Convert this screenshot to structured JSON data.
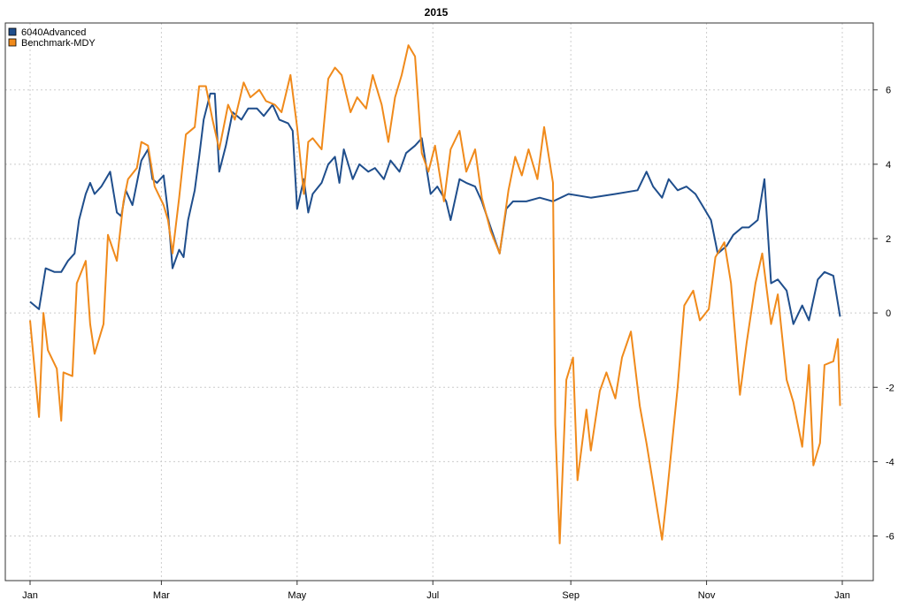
{
  "chart_data": {
    "type": "line",
    "title": "2015",
    "xlabel": "",
    "ylabel": "",
    "y_axis_side": "right",
    "grid": true,
    "legend_position": "top-left",
    "x_range": [
      "2015-01-01",
      "2016-01-01"
    ],
    "ylim": [
      -7.2,
      7.8
    ],
    "x_ticks": [
      {
        "label": "Jan",
        "date": "2015-01-01"
      },
      {
        "label": "Mar",
        "date": "2015-03-01"
      },
      {
        "label": "May",
        "date": "2015-05-01"
      },
      {
        "label": "Jul",
        "date": "2015-07-01"
      },
      {
        "label": "Sep",
        "date": "2015-09-01"
      },
      {
        "label": "Nov",
        "date": "2015-11-01"
      },
      {
        "label": "Jan",
        "date": "2016-01-01"
      }
    ],
    "y_ticks": [
      6,
      4,
      2,
      0,
      -2,
      -4,
      -6
    ],
    "series": [
      {
        "name": "6040Advanced",
        "color": "#1f4e8c",
        "points": [
          [
            "2015-01-01",
            0.3
          ],
          [
            "2015-01-05",
            0.1
          ],
          [
            "2015-01-08",
            1.2
          ],
          [
            "2015-01-12",
            1.1
          ],
          [
            "2015-01-15",
            1.1
          ],
          [
            "2015-01-18",
            1.4
          ],
          [
            "2015-01-21",
            1.6
          ],
          [
            "2015-01-23",
            2.5
          ],
          [
            "2015-01-26",
            3.2
          ],
          [
            "2015-01-28",
            3.5
          ],
          [
            "2015-01-30",
            3.2
          ],
          [
            "2015-02-02",
            3.4
          ],
          [
            "2015-02-04",
            3.6
          ],
          [
            "2015-02-06",
            3.8
          ],
          [
            "2015-02-09",
            2.7
          ],
          [
            "2015-02-11",
            2.6
          ],
          [
            "2015-02-13",
            3.3
          ],
          [
            "2015-02-16",
            2.9
          ],
          [
            "2015-02-18",
            3.5
          ],
          [
            "2015-02-20",
            4.1
          ],
          [
            "2015-02-23",
            4.4
          ],
          [
            "2015-02-25",
            3.6
          ],
          [
            "2015-02-27",
            3.5
          ],
          [
            "2015-03-02",
            3.7
          ],
          [
            "2015-03-04",
            2.7
          ],
          [
            "2015-03-06",
            1.2
          ],
          [
            "2015-03-09",
            1.7
          ],
          [
            "2015-03-11",
            1.5
          ],
          [
            "2015-03-13",
            2.5
          ],
          [
            "2015-03-16",
            3.3
          ],
          [
            "2015-03-18",
            4.2
          ],
          [
            "2015-03-20",
            5.2
          ],
          [
            "2015-03-23",
            5.9
          ],
          [
            "2015-03-25",
            5.9
          ],
          [
            "2015-03-27",
            3.8
          ],
          [
            "2015-03-30",
            4.5
          ],
          [
            "2015-04-02",
            5.4
          ],
          [
            "2015-04-06",
            5.2
          ],
          [
            "2015-04-09",
            5.5
          ],
          [
            "2015-04-13",
            5.5
          ],
          [
            "2015-04-16",
            5.3
          ],
          [
            "2015-04-20",
            5.6
          ],
          [
            "2015-04-23",
            5.2
          ],
          [
            "2015-04-27",
            5.1
          ],
          [
            "2015-04-29",
            4.9
          ],
          [
            "2015-05-01",
            2.8
          ],
          [
            "2015-05-04",
            3.6
          ],
          [
            "2015-05-06",
            2.7
          ],
          [
            "2015-05-08",
            3.2
          ],
          [
            "2015-05-12",
            3.5
          ],
          [
            "2015-05-15",
            4.0
          ],
          [
            "2015-05-18",
            4.2
          ],
          [
            "2015-05-20",
            3.5
          ],
          [
            "2015-05-22",
            4.4
          ],
          [
            "2015-05-26",
            3.6
          ],
          [
            "2015-05-29",
            4.0
          ],
          [
            "2015-06-02",
            3.8
          ],
          [
            "2015-06-05",
            3.9
          ],
          [
            "2015-06-09",
            3.6
          ],
          [
            "2015-06-12",
            4.1
          ],
          [
            "2015-06-16",
            3.8
          ],
          [
            "2015-06-19",
            4.3
          ],
          [
            "2015-06-23",
            4.5
          ],
          [
            "2015-06-26",
            4.7
          ],
          [
            "2015-06-30",
            3.2
          ],
          [
            "2015-07-03",
            3.4
          ],
          [
            "2015-07-07",
            3.0
          ],
          [
            "2015-07-09",
            2.5
          ],
          [
            "2015-07-13",
            3.6
          ],
          [
            "2015-07-16",
            3.5
          ],
          [
            "2015-07-20",
            3.4
          ],
          [
            "2015-07-23",
            3.0
          ],
          [
            "2015-07-27",
            2.3
          ],
          [
            "2015-07-31",
            1.6
          ],
          [
            "2015-08-03",
            2.8
          ],
          [
            "2015-08-06",
            3.0
          ],
          [
            "2015-08-12",
            3.0
          ],
          [
            "2015-08-18",
            3.1
          ],
          [
            "2015-08-24",
            3.0
          ],
          [
            "2015-08-31",
            3.2
          ],
          [
            "2015-09-10",
            3.1
          ],
          [
            "2015-09-21",
            3.2
          ],
          [
            "2015-10-01",
            3.3
          ],
          [
            "2015-10-05",
            3.8
          ],
          [
            "2015-10-08",
            3.4
          ],
          [
            "2015-10-12",
            3.1
          ],
          [
            "2015-10-15",
            3.6
          ],
          [
            "2015-10-19",
            3.3
          ],
          [
            "2015-10-23",
            3.4
          ],
          [
            "2015-10-27",
            3.2
          ],
          [
            "2015-10-30",
            2.9
          ],
          [
            "2015-11-03",
            2.5
          ],
          [
            "2015-11-06",
            1.6
          ],
          [
            "2015-11-10",
            1.8
          ],
          [
            "2015-11-13",
            2.1
          ],
          [
            "2015-11-17",
            2.3
          ],
          [
            "2015-11-20",
            2.3
          ],
          [
            "2015-11-24",
            2.5
          ],
          [
            "2015-11-27",
            3.6
          ],
          [
            "2015-11-30",
            0.8
          ],
          [
            "2015-12-03",
            0.9
          ],
          [
            "2015-12-07",
            0.6
          ],
          [
            "2015-12-10",
            -0.3
          ],
          [
            "2015-12-14",
            0.2
          ],
          [
            "2015-12-17",
            -0.2
          ],
          [
            "2015-12-21",
            0.9
          ],
          [
            "2015-12-24",
            1.1
          ],
          [
            "2015-12-28",
            1.0
          ],
          [
            "2015-12-31",
            -0.1
          ]
        ]
      },
      {
        "name": "Benchmark-MDY",
        "color": "#f08a1b",
        "points": [
          [
            "2015-01-01",
            -0.2
          ],
          [
            "2015-01-05",
            -2.8
          ],
          [
            "2015-01-07",
            0.0
          ],
          [
            "2015-01-09",
            -1.0
          ],
          [
            "2015-01-13",
            -1.5
          ],
          [
            "2015-01-15",
            -2.9
          ],
          [
            "2015-01-16",
            -1.6
          ],
          [
            "2015-01-20",
            -1.7
          ],
          [
            "2015-01-22",
            0.8
          ],
          [
            "2015-01-26",
            1.4
          ],
          [
            "2015-01-28",
            -0.3
          ],
          [
            "2015-01-30",
            -1.1
          ],
          [
            "2015-02-03",
            -0.3
          ],
          [
            "2015-02-05",
            2.1
          ],
          [
            "2015-02-09",
            1.4
          ],
          [
            "2015-02-12",
            3.0
          ],
          [
            "2015-02-14",
            3.6
          ],
          [
            "2015-02-18",
            3.9
          ],
          [
            "2015-02-20",
            4.6
          ],
          [
            "2015-02-23",
            4.5
          ],
          [
            "2015-02-26",
            3.4
          ],
          [
            "2015-03-02",
            2.9
          ],
          [
            "2015-03-04",
            2.5
          ],
          [
            "2015-03-06",
            1.6
          ],
          [
            "2015-03-09",
            3.1
          ],
          [
            "2015-03-12",
            4.8
          ],
          [
            "2015-03-16",
            5.0
          ],
          [
            "2015-03-18",
            6.1
          ],
          [
            "2015-03-21",
            6.1
          ],
          [
            "2015-03-24",
            5.2
          ],
          [
            "2015-03-27",
            4.4
          ],
          [
            "2015-03-31",
            5.6
          ],
          [
            "2015-04-03",
            5.2
          ],
          [
            "2015-04-07",
            6.2
          ],
          [
            "2015-04-10",
            5.8
          ],
          [
            "2015-04-14",
            6.0
          ],
          [
            "2015-04-17",
            5.7
          ],
          [
            "2015-04-21",
            5.6
          ],
          [
            "2015-04-24",
            5.4
          ],
          [
            "2015-04-28",
            6.4
          ],
          [
            "2015-05-01",
            5.0
          ],
          [
            "2015-05-04",
            3.2
          ],
          [
            "2015-05-06",
            4.6
          ],
          [
            "2015-05-08",
            4.7
          ],
          [
            "2015-05-12",
            4.4
          ],
          [
            "2015-05-15",
            6.3
          ],
          [
            "2015-05-18",
            6.6
          ],
          [
            "2015-05-21",
            6.4
          ],
          [
            "2015-05-25",
            5.4
          ],
          [
            "2015-05-28",
            5.8
          ],
          [
            "2015-06-01",
            5.5
          ],
          [
            "2015-06-04",
            6.4
          ],
          [
            "2015-06-08",
            5.6
          ],
          [
            "2015-06-11",
            4.6
          ],
          [
            "2015-06-14",
            5.8
          ],
          [
            "2015-06-17",
            6.4
          ],
          [
            "2015-06-20",
            7.2
          ],
          [
            "2015-06-23",
            6.9
          ],
          [
            "2015-06-26",
            4.3
          ],
          [
            "2015-06-29",
            3.8
          ],
          [
            "2015-07-02",
            4.5
          ],
          [
            "2015-07-06",
            3.0
          ],
          [
            "2015-07-09",
            4.4
          ],
          [
            "2015-07-13",
            4.9
          ],
          [
            "2015-07-16",
            3.8
          ],
          [
            "2015-07-20",
            4.4
          ],
          [
            "2015-07-23",
            3.1
          ],
          [
            "2015-07-27",
            2.2
          ],
          [
            "2015-07-31",
            1.6
          ],
          [
            "2015-08-04",
            3.3
          ],
          [
            "2015-08-07",
            4.2
          ],
          [
            "2015-08-10",
            3.7
          ],
          [
            "2015-08-13",
            4.4
          ],
          [
            "2015-08-17",
            3.6
          ],
          [
            "2015-08-20",
            5.0
          ],
          [
            "2015-08-24",
            3.5
          ],
          [
            "2015-08-25",
            -3.0
          ],
          [
            "2015-08-27",
            -6.2
          ],
          [
            "2015-08-30",
            -1.8
          ],
          [
            "2015-09-02",
            -1.2
          ],
          [
            "2015-09-04",
            -4.5
          ],
          [
            "2015-09-08",
            -2.6
          ],
          [
            "2015-09-10",
            -3.7
          ],
          [
            "2015-09-14",
            -2.1
          ],
          [
            "2015-09-17",
            -1.6
          ],
          [
            "2015-09-21",
            -2.3
          ],
          [
            "2015-09-24",
            -1.2
          ],
          [
            "2015-09-28",
            -0.5
          ],
          [
            "2015-10-02",
            -2.5
          ],
          [
            "2015-10-05",
            -3.5
          ],
          [
            "2015-10-08",
            -4.6
          ],
          [
            "2015-10-12",
            -6.1
          ],
          [
            "2015-10-14",
            -5.0
          ],
          [
            "2015-10-19",
            -2.0
          ],
          [
            "2015-10-22",
            0.2
          ],
          [
            "2015-10-26",
            0.6
          ],
          [
            "2015-10-29",
            -0.2
          ],
          [
            "2015-11-02",
            0.1
          ],
          [
            "2015-11-05",
            1.5
          ],
          [
            "2015-11-09",
            1.9
          ],
          [
            "2015-11-12",
            0.8
          ],
          [
            "2015-11-16",
            -2.2
          ],
          [
            "2015-11-19",
            -0.8
          ],
          [
            "2015-11-23",
            0.8
          ],
          [
            "2015-11-26",
            1.6
          ],
          [
            "2015-11-30",
            -0.3
          ],
          [
            "2015-12-03",
            0.5
          ],
          [
            "2015-12-07",
            -1.8
          ],
          [
            "2015-12-10",
            -2.4
          ],
          [
            "2015-12-14",
            -3.6
          ],
          [
            "2015-12-17",
            -1.4
          ],
          [
            "2015-12-19",
            -4.1
          ],
          [
            "2015-12-22",
            -3.5
          ],
          [
            "2015-12-24",
            -1.4
          ],
          [
            "2015-12-28",
            -1.3
          ],
          [
            "2015-12-30",
            -0.7
          ],
          [
            "2015-12-31",
            -2.5
          ]
        ]
      }
    ]
  }
}
